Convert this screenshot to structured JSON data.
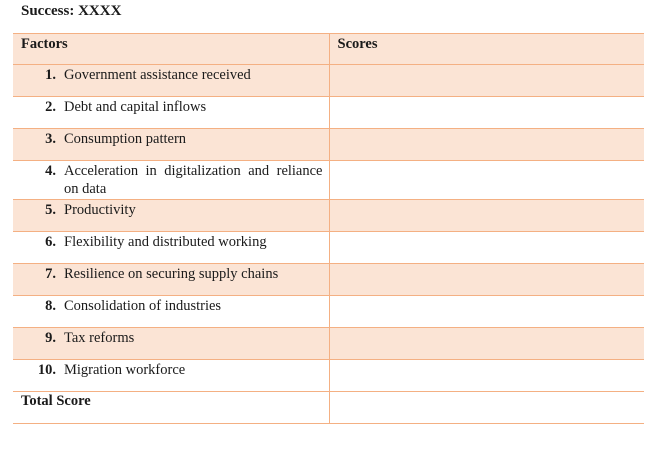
{
  "title": "Success: XXXX",
  "table": {
    "headers": {
      "factors": "Factors",
      "scores": "Scores"
    },
    "rows": [
      {
        "num": "1.",
        "label": "Government assistance received",
        "score": ""
      },
      {
        "num": "2.",
        "label": "Debt and capital inflows",
        "score": ""
      },
      {
        "num": "3.",
        "label": "Consumption pattern",
        "score": ""
      },
      {
        "num": "4.",
        "label": "Acceleration in digitalization and reliance on data",
        "score": ""
      },
      {
        "num": "5.",
        "label": "Productivity",
        "score": ""
      },
      {
        "num": "6.",
        "label": "Flexibility and distributed working",
        "score": ""
      },
      {
        "num": "7.",
        "label": "Resilience on securing supply chains",
        "score": ""
      },
      {
        "num": "8.",
        "label": "Consolidation of industries",
        "score": ""
      },
      {
        "num": "9.",
        "label": "Tax reforms",
        "score": ""
      },
      {
        "num": "10.",
        "label": "Migration workforce",
        "score": ""
      }
    ],
    "total": {
      "label": "Total Score",
      "score": ""
    }
  },
  "colors": {
    "shade": "#fbe4d5",
    "border": "#f4b083"
  }
}
